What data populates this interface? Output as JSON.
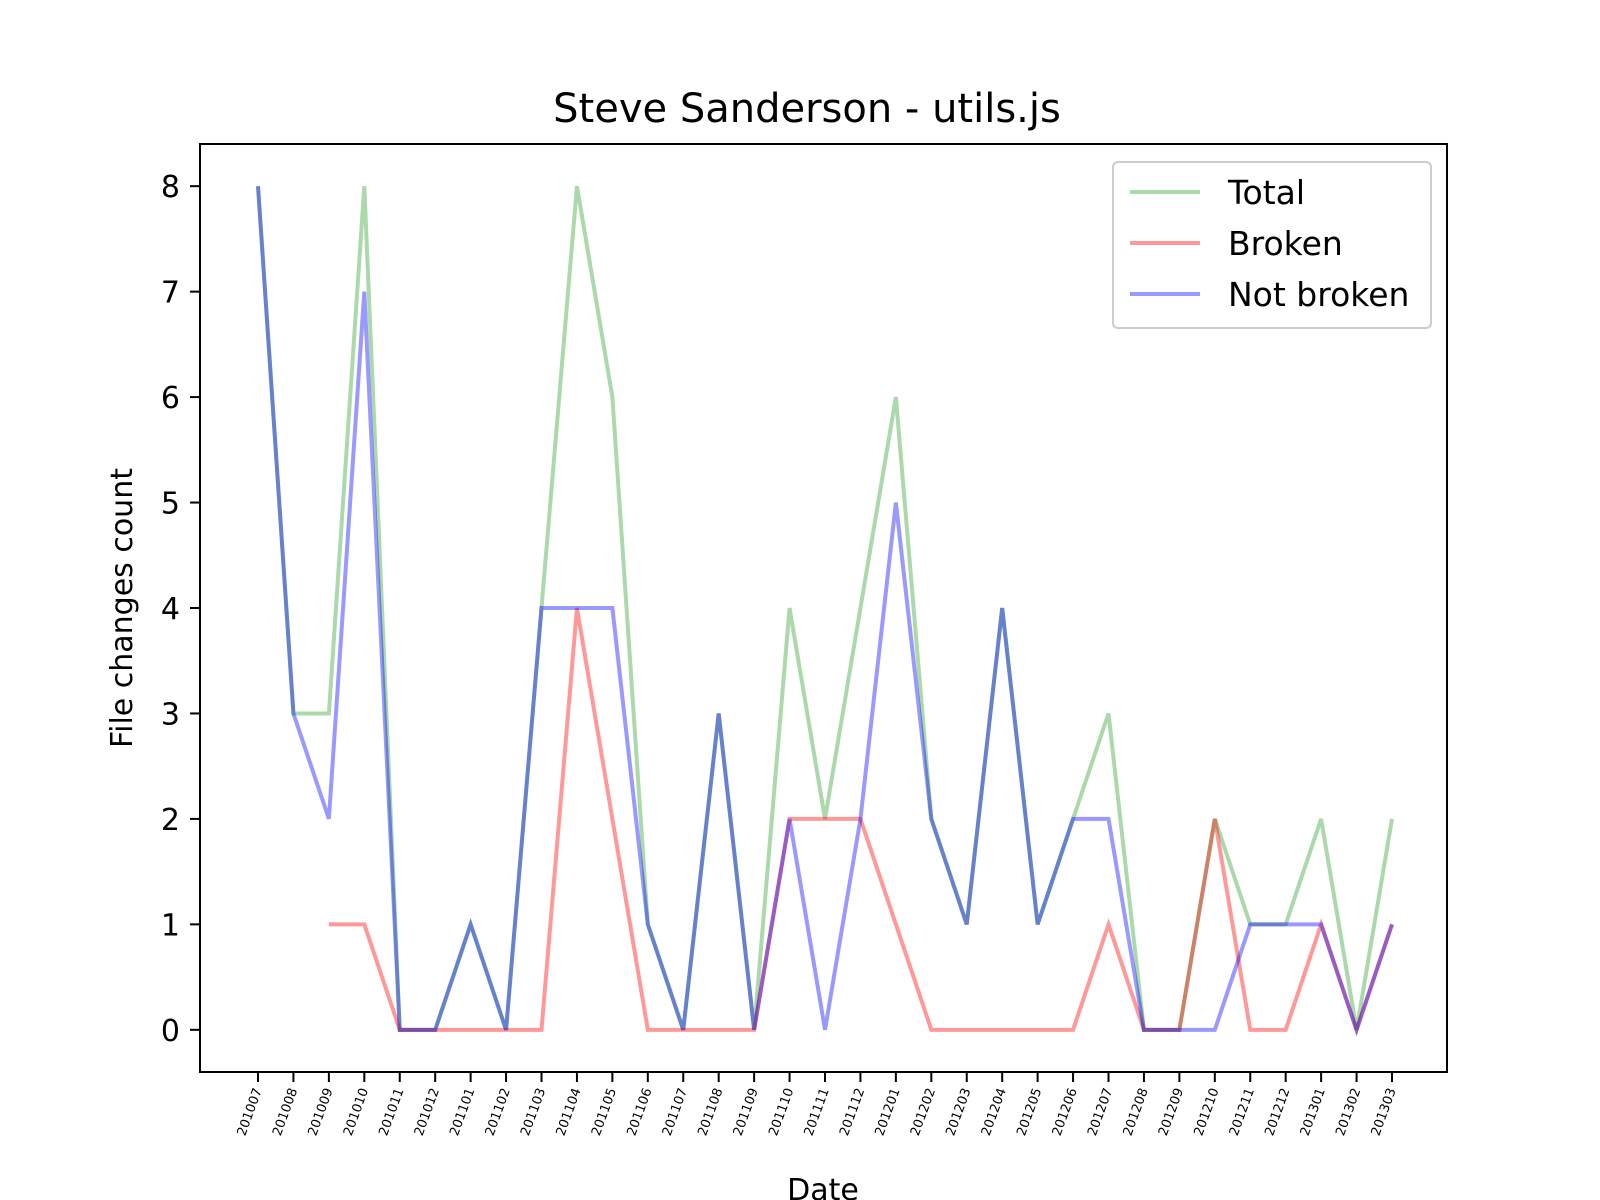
{
  "chart_data": {
    "type": "line",
    "title": "Steve Sanderson - utils.js",
    "xlabel": "Date",
    "ylabel": "File changes count",
    "categories": [
      "201007",
      "201008",
      "201009",
      "201010",
      "201011",
      "201012",
      "201101",
      "201102",
      "201103",
      "201104",
      "201105",
      "201106",
      "201107",
      "201108",
      "201109",
      "201110",
      "201111",
      "201112",
      "201201",
      "201202",
      "201203",
      "201204",
      "201205",
      "201206",
      "201207",
      "201208",
      "201209",
      "201210",
      "201211",
      "201212",
      "201301",
      "201302",
      "201303"
    ],
    "ylim": [
      -0.4,
      8.4
    ],
    "yticks": [
      0,
      1,
      2,
      3,
      4,
      5,
      6,
      7,
      8
    ],
    "grid": false,
    "legend_position": "top-right",
    "series": [
      {
        "name": "Total",
        "color": "#2ca02c",
        "values": [
          8,
          3,
          3,
          8,
          0,
          0,
          1,
          0,
          4,
          8,
          6,
          1,
          0,
          3,
          0,
          4,
          2,
          4,
          6,
          2,
          1,
          4,
          1,
          2,
          3,
          0,
          0,
          2,
          1,
          1,
          2,
          0,
          2
        ]
      },
      {
        "name": "Broken",
        "color": "#ff0000",
        "values": [
          null,
          null,
          1,
          1,
          0,
          0,
          0,
          0,
          0,
          4,
          2,
          0,
          0,
          0,
          0,
          2,
          2,
          2,
          1,
          0,
          0,
          0,
          0,
          0,
          1,
          0,
          0,
          2,
          0,
          0,
          1,
          0,
          1
        ]
      },
      {
        "name": "Not broken",
        "color": "#0000ff",
        "values": [
          8,
          3,
          2,
          7,
          0,
          0,
          1,
          0,
          4,
          4,
          4,
          1,
          0,
          3,
          0,
          2,
          0,
          2,
          5,
          2,
          1,
          4,
          1,
          2,
          2,
          0,
          0,
          0,
          1,
          1,
          1,
          0,
          1
        ]
      }
    ]
  }
}
